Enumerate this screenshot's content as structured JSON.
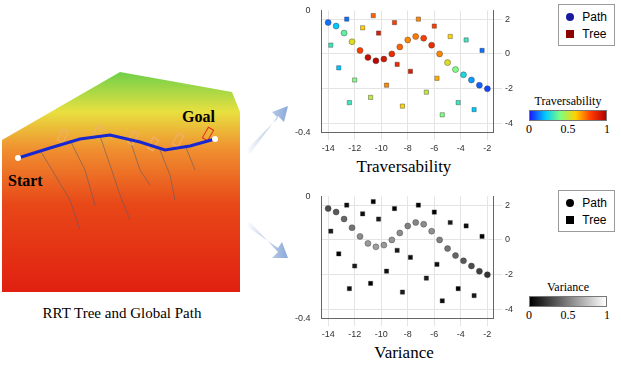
{
  "left_panel": {
    "caption": "RRT Tree and Global Path",
    "start_label": "Start",
    "goal_label": "Goal"
  },
  "chart_data": [
    {
      "type": "scatter",
      "title": "Traversability",
      "xlim": [
        -14.5,
        -1.5
      ],
      "xticks": [
        -14,
        -12,
        -10,
        -8,
        -6,
        -4,
        -2
      ],
      "ylim": [
        -4.5,
        2.5
      ],
      "yticks": [
        -4,
        -2,
        0,
        2
      ],
      "zlim": [
        -0.4,
        0
      ],
      "zticks": [
        -0.4,
        0
      ],
      "grid": true,
      "legend": "top-right",
      "colorbar": {
        "title": "Traversability",
        "range": [
          0,
          1
        ],
        "ticks": [
          0,
          0.5,
          1
        ],
        "colors": [
          "#1a1aff",
          "#00c8ff",
          "#7fff7f",
          "#ffd200",
          "#ff3c00",
          "#b40000"
        ]
      },
      "series": [
        {
          "name": "Path",
          "color": "#1a1aa0",
          "marker": "circle",
          "x": [
            -14.0,
            -13.4,
            -12.8,
            -12.2,
            -11.6,
            -11.0,
            -10.4,
            -9.8,
            -9.2,
            -8.6,
            -8.0,
            -7.4,
            -6.8,
            -6.2,
            -5.6,
            -5.0,
            -4.4,
            -3.8,
            -3.2,
            -2.6,
            -2.0
          ],
          "y": [
            1.8,
            1.6,
            1.2,
            0.7,
            0.2,
            -0.2,
            -0.4,
            -0.3,
            0.0,
            0.4,
            0.8,
            1.0,
            0.9,
            0.5,
            0.0,
            -0.5,
            -0.9,
            -1.2,
            -1.5,
            -1.8,
            -2.0
          ],
          "values": [
            0.1,
            0.2,
            0.35,
            0.55,
            0.8,
            0.95,
            0.98,
            0.92,
            0.85,
            0.75,
            0.7,
            0.72,
            0.8,
            0.85,
            0.7,
            0.55,
            0.4,
            0.25,
            0.15,
            0.08,
            0.05
          ]
        },
        {
          "name": "Tree",
          "color": "#8b0000",
          "marker": "square",
          "x": [
            -13.8,
            -13.2,
            -12.6,
            -12.0,
            -11.4,
            -10.8,
            -10.2,
            -9.6,
            -9.0,
            -8.4,
            -7.8,
            -7.2,
            -6.6,
            -6.0,
            -5.4,
            -4.8,
            -4.2,
            -3.6,
            -3.0,
            -2.4,
            -12.4,
            -8.8,
            -5.8,
            -10.6
          ],
          "y": [
            0.5,
            -0.8,
            2.0,
            -1.5,
            1.5,
            -2.5,
            1.2,
            -1.8,
            1.8,
            -3.0,
            -1.0,
            2.0,
            -2.2,
            1.6,
            -3.5,
            1.0,
            -2.8,
            0.8,
            -3.2,
            0.2,
            -2.8,
            -0.6,
            -1.4,
            2.2
          ],
          "values": [
            0.3,
            0.2,
            0.1,
            0.4,
            0.6,
            0.5,
            0.9,
            0.7,
            0.8,
            0.6,
            0.9,
            0.7,
            0.5,
            0.8,
            0.4,
            0.6,
            0.3,
            0.3,
            0.2,
            0.1,
            0.3,
            0.85,
            0.65,
            0.75
          ]
        }
      ]
    },
    {
      "type": "scatter",
      "title": "Variance",
      "xlim": [
        -14.5,
        -1.5
      ],
      "xticks": [
        -14,
        -12,
        -10,
        -8,
        -6,
        -4,
        -2
      ],
      "ylim": [
        -4.5,
        2.5
      ],
      "yticks": [
        -4,
        -2,
        0,
        2
      ],
      "zlim": [
        -0.4,
        0
      ],
      "zticks": [
        -0.4,
        0
      ],
      "grid": true,
      "legend": "top-right",
      "colorbar": {
        "title": "Variance",
        "range": [
          0,
          1
        ],
        "ticks": [
          0,
          0.5,
          1
        ],
        "colors": [
          "#000000",
          "#ffffff"
        ]
      },
      "series": [
        {
          "name": "Path",
          "color": "#000000",
          "marker": "circle",
          "x": [
            -14.0,
            -13.4,
            -12.8,
            -12.2,
            -11.6,
            -11.0,
            -10.4,
            -9.8,
            -9.2,
            -8.6,
            -8.0,
            -7.4,
            -6.8,
            -6.2,
            -5.6,
            -5.0,
            -4.4,
            -3.8,
            -3.2,
            -2.6,
            -2.0
          ],
          "y": [
            1.8,
            1.6,
            1.2,
            0.7,
            0.2,
            -0.2,
            -0.4,
            -0.3,
            0.0,
            0.4,
            0.8,
            1.0,
            0.9,
            0.5,
            0.0,
            -0.5,
            -0.9,
            -1.2,
            -1.5,
            -1.8,
            -2.0
          ],
          "values": [
            0.3,
            0.35,
            0.4,
            0.45,
            0.55,
            0.6,
            0.62,
            0.6,
            0.58,
            0.55,
            0.5,
            0.52,
            0.55,
            0.57,
            0.5,
            0.45,
            0.4,
            0.35,
            0.3,
            0.25,
            0.2
          ]
        },
        {
          "name": "Tree",
          "color": "#000000",
          "marker": "square",
          "x": [
            -13.8,
            -13.2,
            -12.6,
            -12.0,
            -11.4,
            -10.8,
            -10.2,
            -9.6,
            -9.0,
            -8.4,
            -7.8,
            -7.2,
            -6.6,
            -6.0,
            -5.4,
            -4.8,
            -4.2,
            -3.6,
            -3.0,
            -2.4,
            -12.4,
            -8.8,
            -5.8,
            -10.6
          ],
          "y": [
            0.5,
            -0.8,
            2.0,
            -1.5,
            1.5,
            -2.5,
            1.2,
            -1.8,
            1.8,
            -3.0,
            -1.0,
            2.0,
            -2.2,
            1.6,
            -3.5,
            1.0,
            -2.8,
            0.8,
            -3.2,
            0.2,
            -2.8,
            -0.6,
            -1.4,
            2.2
          ],
          "values": [
            0.1,
            0.0,
            0.05,
            0.1,
            0.05,
            0.0,
            0.1,
            0.05,
            0.0,
            0.1,
            0.05,
            0.0,
            0.1,
            0.0,
            0.05,
            0.1,
            0.0,
            0.05,
            0.1,
            0.0,
            0.05,
            0.1,
            0.05,
            0.0
          ]
        }
      ]
    }
  ]
}
